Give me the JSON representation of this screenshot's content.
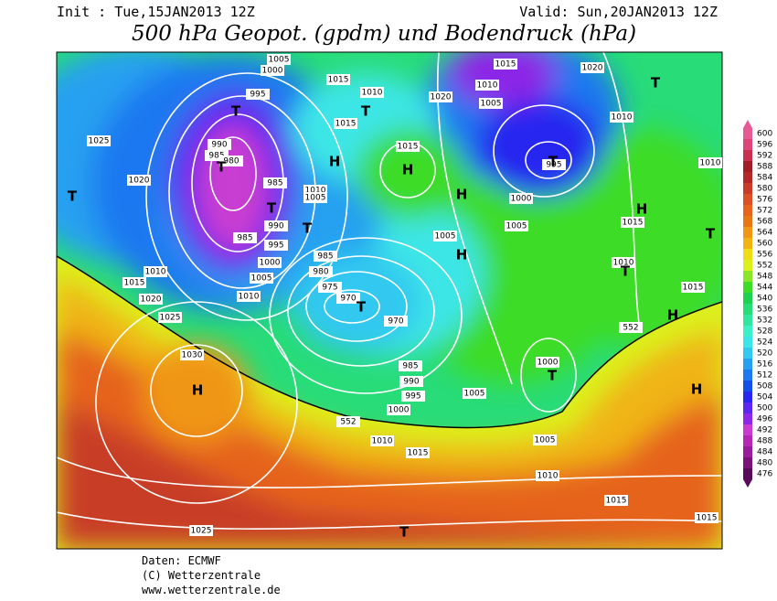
{
  "header": {
    "init": "Init : Tue,15JAN2013 12Z",
    "valid": "Valid: Sun,20JAN2013 12Z",
    "title": "500 hPa Geopot. (gpdm) und Bodendruck (hPa)"
  },
  "map": {
    "pressure_labels": [
      1005,
      1000,
      1015,
      1010,
      995,
      1015,
      1020,
      1010,
      1015,
      1020,
      1005,
      1010,
      1025,
      990,
      985,
      980,
      1015,
      995,
      1020,
      985,
      1010,
      1005,
      1000,
      1005,
      1015,
      990,
      985,
      995,
      1005,
      1010,
      1000,
      985,
      1010,
      1005,
      980,
      1015,
      1010,
      975,
      1010,
      970,
      1020,
      1015,
      1025,
      970,
      552,
      1000,
      1030,
      985,
      990,
      995,
      1005,
      1000,
      552,
      1010,
      1015,
      1005,
      1010,
      1015,
      1025,
      1015
    ],
    "centers": [
      "T",
      "T",
      "T",
      "H",
      "H",
      "T",
      "T",
      "T",
      "H",
      "H",
      "T",
      "T",
      "H",
      "T",
      "T",
      "T",
      "H",
      "T",
      "H",
      "H",
      "T"
    ]
  },
  "colorbar": {
    "levels": [
      476,
      480,
      484,
      488,
      492,
      496,
      500,
      504,
      508,
      512,
      516,
      520,
      524,
      528,
      532,
      536,
      540,
      544,
      548,
      552,
      556,
      560,
      564,
      568,
      572,
      576,
      580,
      584,
      588,
      592,
      596,
      600
    ],
    "colors": [
      "#5a0a5a",
      "#7a127a",
      "#9a1c9a",
      "#b428b4",
      "#c83cd2",
      "#8c28e6",
      "#5a28f0",
      "#2828f0",
      "#1450e6",
      "#1e78f0",
      "#28a0f0",
      "#32c8f0",
      "#3ce6e6",
      "#3cf0c8",
      "#32e6a0",
      "#28dc78",
      "#1ed250",
      "#3cdc28",
      "#8ce628",
      "#dcf01e",
      "#f0dc14",
      "#f0b414",
      "#f09614",
      "#e67814",
      "#e6641e",
      "#dc5028",
      "#c83c28",
      "#b42828",
      "#a01e28",
      "#c83250",
      "#dc4678",
      "#e65a96"
    ]
  },
  "footer": {
    "lines": [
      "Daten: ECMWF",
      "(C) Wetterzentrale",
      "www.wetterzentrale.de"
    ]
  }
}
